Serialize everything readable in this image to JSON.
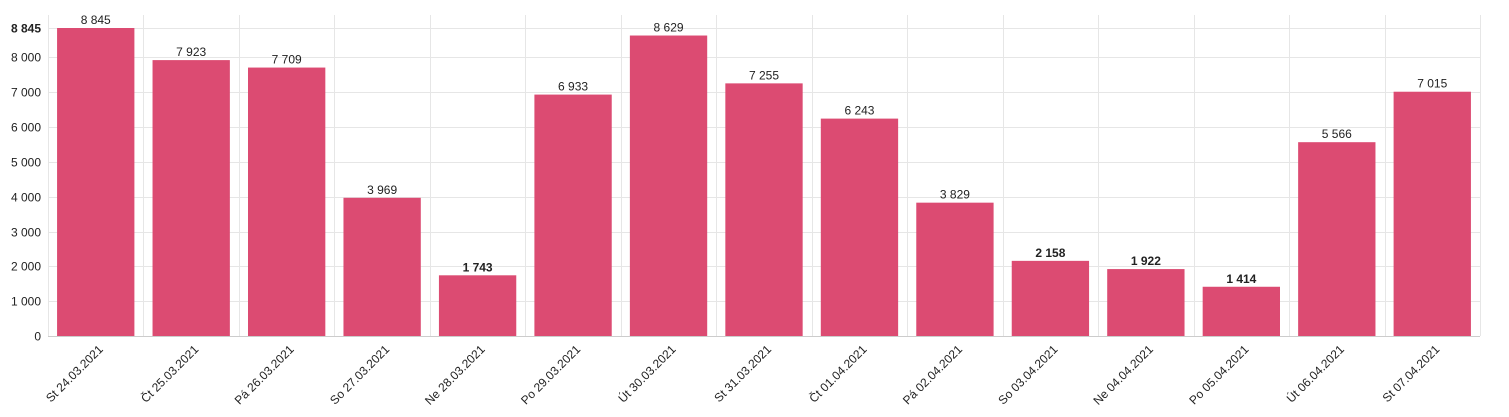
{
  "chart_data": {
    "type": "bar",
    "title": "",
    "xlabel": "",
    "ylabel": "",
    "ylim": [
      0,
      8845
    ],
    "y_ticks": [
      0,
      1000,
      2000,
      3000,
      4000,
      5000,
      6000,
      7000,
      8000,
      8845
    ],
    "y_tick_labels": [
      "0",
      "1 000",
      "2 000",
      "3 000",
      "4 000",
      "5 000",
      "6 000",
      "7 000",
      "8 000",
      "8 845"
    ],
    "grid": true,
    "bar_color": "#dc4b72",
    "categories": [
      "St 24.03.2021",
      "Čt 25.03.2021",
      "Pá 26.03.2021",
      "So 27.03.2021",
      "Ne 28.03.2021",
      "Po 29.03.2021",
      "Út 30.03.2021",
      "St 31.03.2021",
      "Čt 01.04.2021",
      "Pá 02.04.2021",
      "So 03.04.2021",
      "Ne 04.04.2021",
      "Po 05.04.2021",
      "Út 06.04.2021",
      "St 07.04.2021"
    ],
    "values": [
      8845,
      7923,
      7709,
      3969,
      1743,
      6933,
      8629,
      7255,
      6243,
      3829,
      2158,
      1922,
      1414,
      5566,
      7015
    ],
    "value_labels": [
      "8 845",
      "7 923",
      "7 709",
      "3 969",
      "1 743",
      "6 933",
      "8 629",
      "7 255",
      "6 243",
      "3 829",
      "2 158",
      "1 922",
      "1 414",
      "5 566",
      "7 015"
    ],
    "bold_value_labels": [
      false,
      false,
      false,
      false,
      true,
      false,
      false,
      false,
      false,
      false,
      true,
      true,
      true,
      false,
      false
    ]
  }
}
